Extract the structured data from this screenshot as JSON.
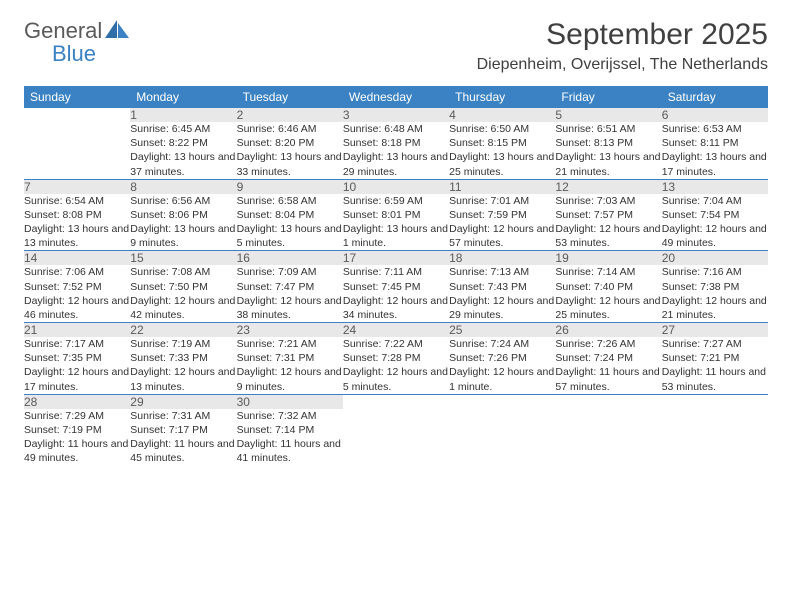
{
  "logo": {
    "text1": "General",
    "text2": "Blue"
  },
  "title": "September 2025",
  "location": "Diepenheim, Overijssel, The Netherlands",
  "colors": {
    "header_bg": "#3b82c4",
    "header_text": "#ffffff",
    "daynum_bg": "#e8e8e8",
    "daynum_text": "#5a5a5a",
    "body_text": "#333333",
    "divider": "#3b82c4",
    "page_bg": "#ffffff"
  },
  "day_headers": [
    "Sunday",
    "Monday",
    "Tuesday",
    "Wednesday",
    "Thursday",
    "Friday",
    "Saturday"
  ],
  "weeks": [
    [
      null,
      {
        "n": "1",
        "sr": "6:45 AM",
        "ss": "8:22 PM",
        "dl": "13 hours and 37 minutes."
      },
      {
        "n": "2",
        "sr": "6:46 AM",
        "ss": "8:20 PM",
        "dl": "13 hours and 33 minutes."
      },
      {
        "n": "3",
        "sr": "6:48 AM",
        "ss": "8:18 PM",
        "dl": "13 hours and 29 minutes."
      },
      {
        "n": "4",
        "sr": "6:50 AM",
        "ss": "8:15 PM",
        "dl": "13 hours and 25 minutes."
      },
      {
        "n": "5",
        "sr": "6:51 AM",
        "ss": "8:13 PM",
        "dl": "13 hours and 21 minutes."
      },
      {
        "n": "6",
        "sr": "6:53 AM",
        "ss": "8:11 PM",
        "dl": "13 hours and 17 minutes."
      }
    ],
    [
      {
        "n": "7",
        "sr": "6:54 AM",
        "ss": "8:08 PM",
        "dl": "13 hours and 13 minutes."
      },
      {
        "n": "8",
        "sr": "6:56 AM",
        "ss": "8:06 PM",
        "dl": "13 hours and 9 minutes."
      },
      {
        "n": "9",
        "sr": "6:58 AM",
        "ss": "8:04 PM",
        "dl": "13 hours and 5 minutes."
      },
      {
        "n": "10",
        "sr": "6:59 AM",
        "ss": "8:01 PM",
        "dl": "13 hours and 1 minute."
      },
      {
        "n": "11",
        "sr": "7:01 AM",
        "ss": "7:59 PM",
        "dl": "12 hours and 57 minutes."
      },
      {
        "n": "12",
        "sr": "7:03 AM",
        "ss": "7:57 PM",
        "dl": "12 hours and 53 minutes."
      },
      {
        "n": "13",
        "sr": "7:04 AM",
        "ss": "7:54 PM",
        "dl": "12 hours and 49 minutes."
      }
    ],
    [
      {
        "n": "14",
        "sr": "7:06 AM",
        "ss": "7:52 PM",
        "dl": "12 hours and 46 minutes."
      },
      {
        "n": "15",
        "sr": "7:08 AM",
        "ss": "7:50 PM",
        "dl": "12 hours and 42 minutes."
      },
      {
        "n": "16",
        "sr": "7:09 AM",
        "ss": "7:47 PM",
        "dl": "12 hours and 38 minutes."
      },
      {
        "n": "17",
        "sr": "7:11 AM",
        "ss": "7:45 PM",
        "dl": "12 hours and 34 minutes."
      },
      {
        "n": "18",
        "sr": "7:13 AM",
        "ss": "7:43 PM",
        "dl": "12 hours and 29 minutes."
      },
      {
        "n": "19",
        "sr": "7:14 AM",
        "ss": "7:40 PM",
        "dl": "12 hours and 25 minutes."
      },
      {
        "n": "20",
        "sr": "7:16 AM",
        "ss": "7:38 PM",
        "dl": "12 hours and 21 minutes."
      }
    ],
    [
      {
        "n": "21",
        "sr": "7:17 AM",
        "ss": "7:35 PM",
        "dl": "12 hours and 17 minutes."
      },
      {
        "n": "22",
        "sr": "7:19 AM",
        "ss": "7:33 PM",
        "dl": "12 hours and 13 minutes."
      },
      {
        "n": "23",
        "sr": "7:21 AM",
        "ss": "7:31 PM",
        "dl": "12 hours and 9 minutes."
      },
      {
        "n": "24",
        "sr": "7:22 AM",
        "ss": "7:28 PM",
        "dl": "12 hours and 5 minutes."
      },
      {
        "n": "25",
        "sr": "7:24 AM",
        "ss": "7:26 PM",
        "dl": "12 hours and 1 minute."
      },
      {
        "n": "26",
        "sr": "7:26 AM",
        "ss": "7:24 PM",
        "dl": "11 hours and 57 minutes."
      },
      {
        "n": "27",
        "sr": "7:27 AM",
        "ss": "7:21 PM",
        "dl": "11 hours and 53 minutes."
      }
    ],
    [
      {
        "n": "28",
        "sr": "7:29 AM",
        "ss": "7:19 PM",
        "dl": "11 hours and 49 minutes."
      },
      {
        "n": "29",
        "sr": "7:31 AM",
        "ss": "7:17 PM",
        "dl": "11 hours and 45 minutes."
      },
      {
        "n": "30",
        "sr": "7:32 AM",
        "ss": "7:14 PM",
        "dl": "11 hours and 41 minutes."
      },
      null,
      null,
      null,
      null
    ]
  ],
  "labels": {
    "sunrise": "Sunrise:",
    "sunset": "Sunset:",
    "daylight": "Daylight:"
  }
}
